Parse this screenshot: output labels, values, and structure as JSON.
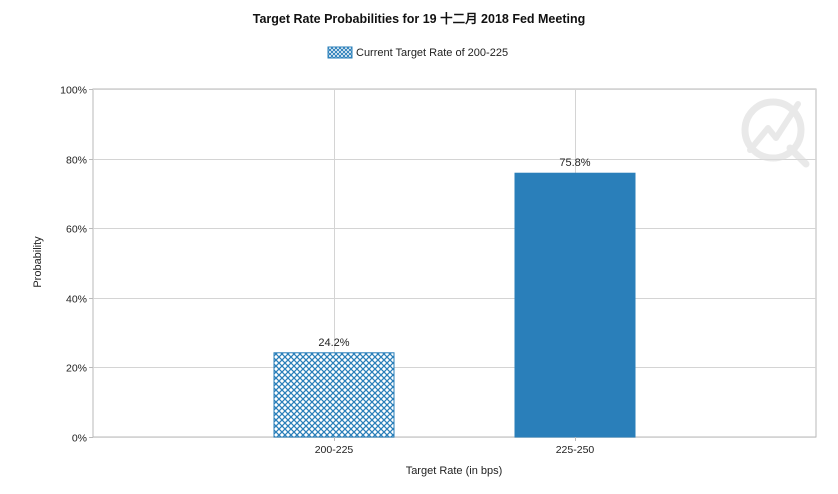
{
  "chart_data": {
    "type": "bar",
    "title": "Target Rate Probabilities for 19 十二月 2018  Fed Meeting",
    "xlabel": "Target Rate (in bps)",
    "ylabel": "Probability",
    "categories": [
      "200-225",
      "225-250"
    ],
    "series": [
      {
        "name": "Current Target Rate of 200-225",
        "values": [
          24.2,
          75.8
        ],
        "data_labels": [
          "24.2%",
          "75.8%"
        ]
      }
    ],
    "ylim": [
      0,
      100
    ],
    "yticks": [
      0,
      20,
      40,
      60,
      80,
      100
    ],
    "ytick_labels": [
      "0%",
      "20%",
      "40%",
      "60%",
      "80%",
      "100%"
    ],
    "grid": true,
    "legend_position": "top-center",
    "bar_styles": [
      "hatched-current",
      "solid"
    ],
    "colors": {
      "bar": "#2a7fba",
      "hatch": "#2a7fba",
      "grid": "#d4d4d4",
      "axis": "#b9b9b9",
      "text": "#222222",
      "watermark": "#e6e6e6"
    }
  }
}
